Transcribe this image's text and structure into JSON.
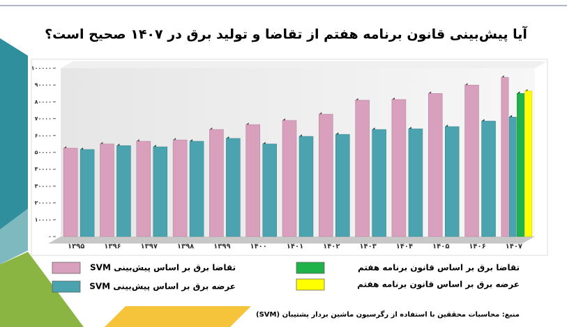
{
  "chart_data": {
    "type": "bar",
    "title": "آیا پیش‌بینی قانون برنامه هفتم از تقاضا و تولید برق در ۱۴۰۷ صحیح است؟",
    "categories": [
      "۱۳۹۵",
      "۱۳۹۶",
      "۱۳۹۷",
      "۱۳۹۸",
      "۱۳۹۹",
      "۱۴۰۰",
      "۱۴۰۱",
      "۱۴۰۲",
      "۱۴۰۳",
      "۱۴۰۴",
      "۱۴۰۵",
      "۱۴۰۶",
      "۱۴۰۷"
    ],
    "series": [
      {
        "name": "تقاضا برق بر اساس پیش‌بینی SVM",
        "color": "#d9a0bd",
        "values": [
          52500,
          55000,
          56600,
          57400,
          63600,
          66500,
          69000,
          72700,
          81000,
          81400,
          85000,
          90000,
          94600
        ]
      },
      {
        "name": "عرضه برق بر اساس پیش‌بینی SVM",
        "color": "#4aa3ae",
        "values": [
          51700,
          54000,
          53300,
          56600,
          58300,
          55000,
          59500,
          60700,
          63600,
          64000,
          65300,
          68600,
          71000
        ]
      },
      {
        "name": "تقاضا برق بر اساس قانون برنامه هفتم",
        "color": "#1fb24a",
        "values": [
          null,
          null,
          null,
          null,
          null,
          null,
          null,
          null,
          null,
          null,
          null,
          null,
          85000
        ]
      },
      {
        "name": "عرضه برق بر اساس قانون برنامه هفتم",
        "color": "#ffff00",
        "values": [
          null,
          null,
          null,
          null,
          null,
          null,
          null,
          null,
          null,
          null,
          null,
          null,
          86400
        ]
      }
    ],
    "ylim": [
      0,
      100000
    ],
    "yticks": [
      {
        "value": 0,
        "label": "۰"
      },
      {
        "value": 10000,
        "label": "۱۰۰۰۰"
      },
      {
        "value": 20000,
        "label": "۲۰۰۰۰"
      },
      {
        "value": 30000,
        "label": "۳۰۰۰۰"
      },
      {
        "value": 40000,
        "label": "۴۰۰۰۰"
      },
      {
        "value": 50000,
        "label": "۵۰۰۰۰"
      },
      {
        "value": 60000,
        "label": "۶۰۰۰۰"
      },
      {
        "value": 70000,
        "label": "۷۰۰۰۰"
      },
      {
        "value": 80000,
        "label": "۸۰۰۰۰"
      },
      {
        "value": 90000,
        "label": "۹۰۰۰۰"
      },
      {
        "value": 100000,
        "label": "۱۰۰۰۰۰"
      }
    ],
    "source": "منبع: محاسبات محققین با استفاده از رگرسیون ماشین بردار پشتیبان (SVM)"
  }
}
